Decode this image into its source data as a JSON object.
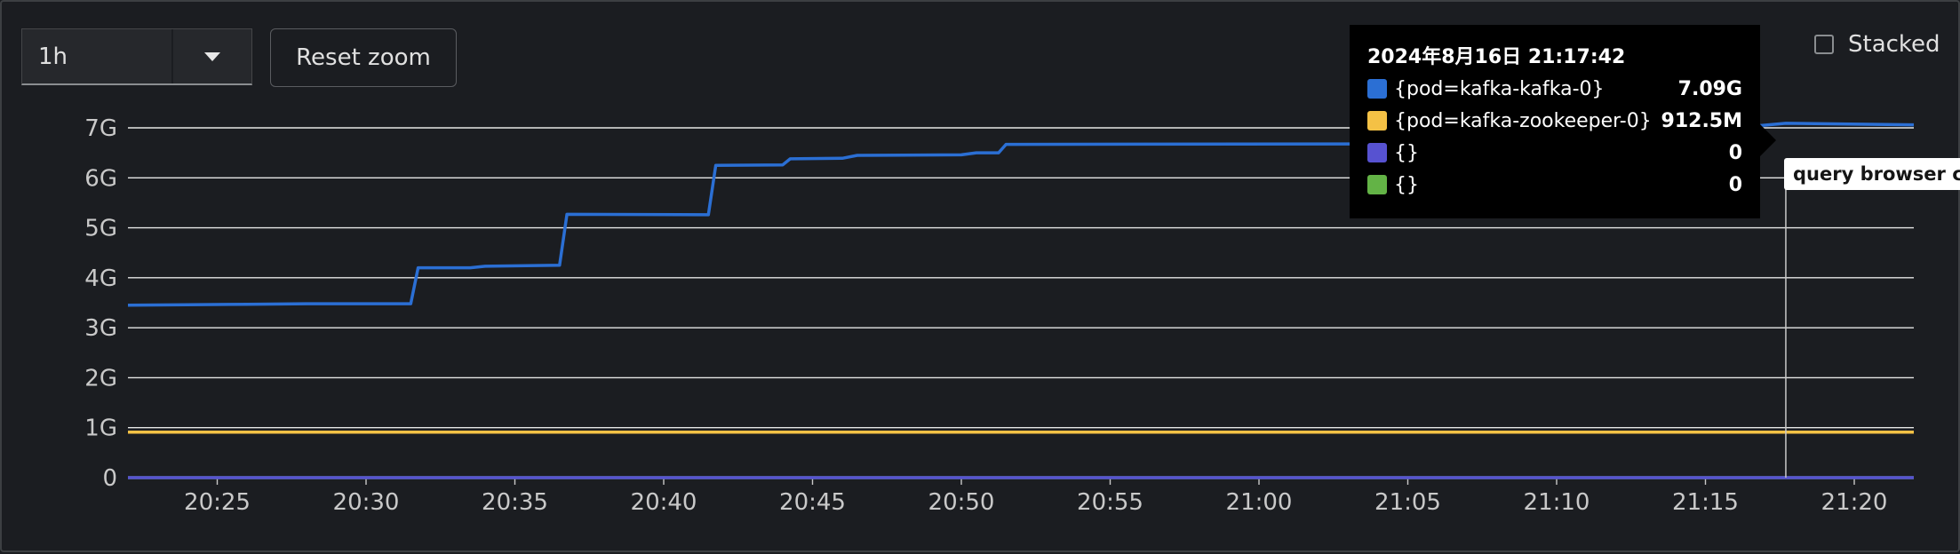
{
  "controls": {
    "time_range": "1h",
    "reset_zoom_label": "Reset zoom",
    "stacked_label": "Stacked",
    "stacked_checked": false
  },
  "tooltip": {
    "timestamp": "2024年8月16日 21:17:42",
    "rows": [
      {
        "name": "{pod=kafka-kafka-0}",
        "value": "7.09G",
        "color": "#2b6fd4"
      },
      {
        "name": "{pod=kafka-zookeeper-0}",
        "value": "912.5M",
        "color": "#f4c145"
      },
      {
        "name": "{}",
        "value": "0",
        "color": "#5752d1"
      },
      {
        "name": "{}",
        "value": "0",
        "color": "#63b346"
      }
    ]
  },
  "crosshair_label": "query browser cha",
  "chart_data": {
    "type": "line",
    "x_unit": "minutes",
    "x_ticks": [
      "20:25",
      "20:30",
      "20:35",
      "20:40",
      "20:45",
      "20:50",
      "20:55",
      "21:00",
      "21:05",
      "21:10",
      "21:15",
      "21:20"
    ],
    "y_ticks": [
      "0",
      "1G",
      "2G",
      "3G",
      "4G",
      "5G",
      "6G",
      "7G"
    ],
    "xlim": [
      "20:22",
      "21:22"
    ],
    "ylim": [
      0,
      7
    ],
    "y_unit": "G",
    "grid": true,
    "crosshair_x": "21:17:42",
    "series": [
      {
        "name": "{pod=kafka-kafka-0}",
        "color": "#2b6fd4",
        "points": [
          [
            "20:22",
            3.45
          ],
          [
            "20:24",
            3.46
          ],
          [
            "20:26",
            3.47
          ],
          [
            "20:28",
            3.48
          ],
          [
            "20:31:30",
            3.48
          ],
          [
            "20:31:45",
            4.2
          ],
          [
            "20:33:30",
            4.2
          ],
          [
            "20:34",
            4.23
          ],
          [
            "20:36:30",
            4.25
          ],
          [
            "20:36:45",
            5.27
          ],
          [
            "20:41:30",
            5.26
          ],
          [
            "20:41:45",
            6.25
          ],
          [
            "20:44",
            6.26
          ],
          [
            "20:44:15",
            6.38
          ],
          [
            "20:46",
            6.39
          ],
          [
            "20:46:30",
            6.45
          ],
          [
            "20:50",
            6.46
          ],
          [
            "20:50:30",
            6.5
          ],
          [
            "20:51:15",
            6.5
          ],
          [
            "20:51:30",
            6.67
          ],
          [
            "21:05",
            6.68
          ],
          [
            "21:10",
            6.68
          ],
          [
            "21:17:42",
            7.09
          ],
          [
            "21:22",
            7.06
          ]
        ]
      },
      {
        "name": "{pod=kafka-zookeeper-0}",
        "color": "#f4c145",
        "points": [
          [
            "20:22",
            0.91
          ],
          [
            "21:22",
            0.91
          ]
        ]
      },
      {
        "name": "{}",
        "color": "#5752d1",
        "points": [
          [
            "20:22",
            0
          ],
          [
            "21:22",
            0
          ]
        ]
      },
      {
        "name": "{}",
        "color": "#63b346",
        "points": [
          [
            "20:22",
            0
          ],
          [
            "21:22",
            0
          ]
        ]
      }
    ]
  }
}
